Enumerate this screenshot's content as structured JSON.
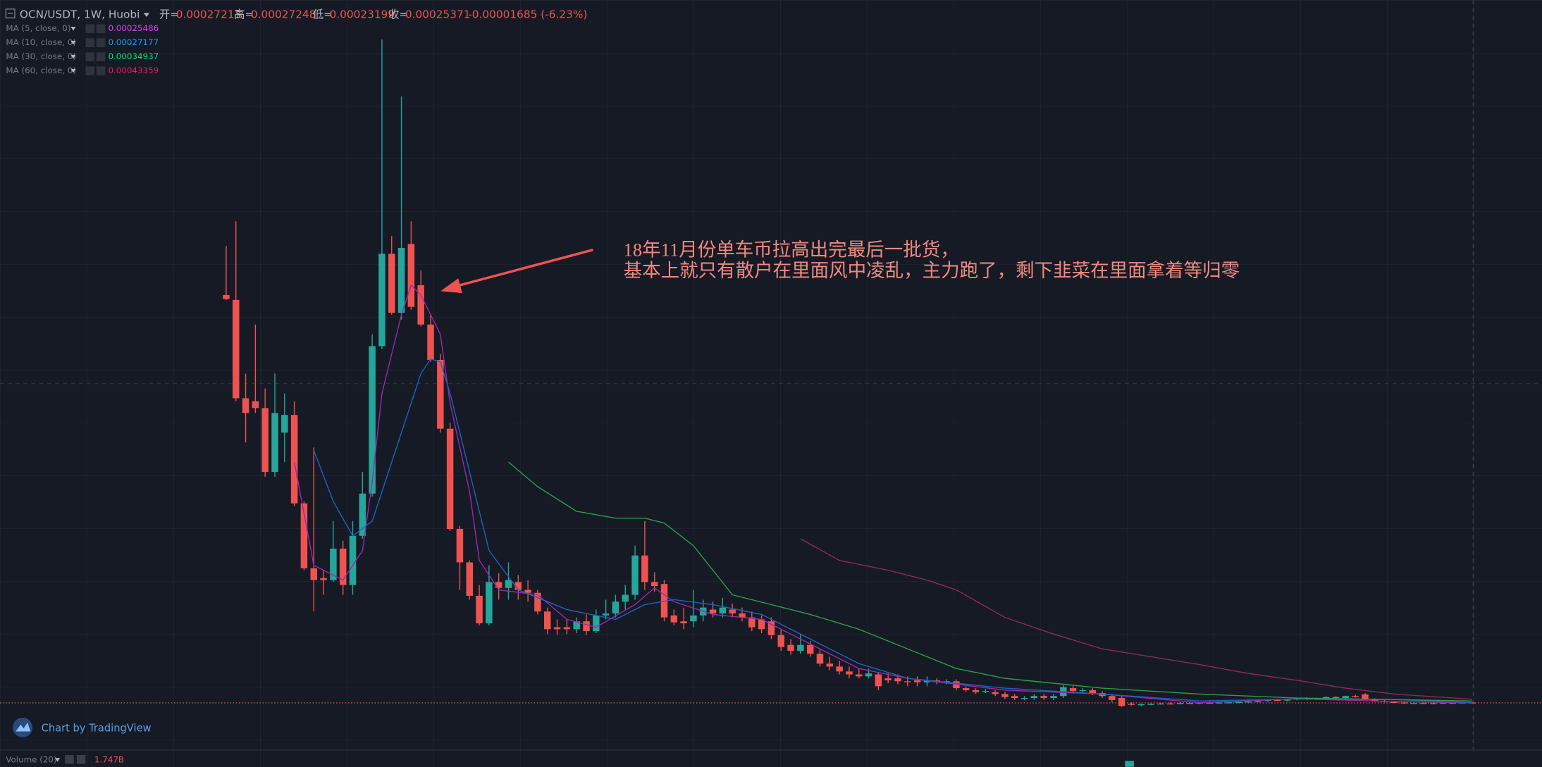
{
  "header": {
    "symbol": "OCN/USDT, 1W, Huobi",
    "ohlc_labels": [
      "开=",
      "高=",
      "低=",
      "收="
    ],
    "change": "-0.00001685 (-6.23%)"
  },
  "chart_data": {
    "type": "candlestick",
    "up_color": "#26a69a",
    "down_color": "#ef5350",
    "ylim": [
      0,
      0.034
    ],
    "candles": [
      [
        0.021,
        0.0235,
        0.02075,
        0.0208
      ],
      [
        0.02075,
        0.02475,
        0.0156,
        0.01575
      ],
      [
        0.01575,
        0.017,
        0.0135,
        0.015
      ],
      [
        0.0156,
        0.0195,
        0.015,
        0.01525
      ],
      [
        0.01525,
        0.01625,
        0.01175,
        0.012
      ],
      [
        0.012,
        0.017,
        0.01175,
        0.015
      ],
      [
        0.014,
        0.016,
        0.0125,
        0.0149
      ],
      [
        0.0149,
        0.0156,
        0.01025,
        0.0104
      ],
      [
        0.0104,
        0.0105,
        0.007,
        0.0071
      ],
      [
        0.0071,
        0.01325,
        0.0049,
        0.0065
      ],
      [
        0.0066,
        0.007,
        0.00575,
        0.0065
      ],
      [
        0.0065,
        0.0095,
        0.0064,
        0.0081
      ],
      [
        0.0081,
        0.0085,
        0.00575,
        0.00625
      ],
      [
        0.00625,
        0.0095,
        0.00575,
        0.00875
      ],
      [
        0.00875,
        0.012,
        0.0086,
        0.0109
      ],
      [
        0.0109,
        0.019,
        0.01075,
        0.0184
      ],
      [
        0.0184,
        0.034,
        0.01825,
        0.0231
      ],
      [
        0.0231,
        0.024,
        0.02,
        0.0201
      ],
      [
        0.0201,
        0.0311,
        0.01975,
        0.0234
      ],
      [
        0.0236,
        0.02475,
        0.02025,
        0.0204
      ],
      [
        0.0215,
        0.02225,
        0.0194,
        0.0195
      ],
      [
        0.0195,
        0.02,
        0.0176,
        0.0177
      ],
      [
        0.0177,
        0.018,
        0.014,
        0.0142
      ],
      [
        0.0142,
        0.0145,
        0.009,
        0.0091
      ],
      [
        0.0091,
        0.00925,
        0.006,
        0.0074
      ],
      [
        0.0074,
        0.0075,
        0.0055,
        0.0057
      ],
      [
        0.0057,
        0.00625,
        0.0042,
        0.0043
      ],
      [
        0.0043,
        0.00725,
        0.0042,
        0.0064
      ],
      [
        0.0064,
        0.00685,
        0.0055,
        0.0061
      ],
      [
        0.0061,
        0.0074,
        0.0055,
        0.0065
      ],
      [
        0.0064,
        0.00675,
        0.0055,
        0.006
      ],
      [
        0.006,
        0.0065,
        0.0054,
        0.00585
      ],
      [
        0.00585,
        0.006,
        0.00475,
        0.0049
      ],
      [
        0.0049,
        0.0051,
        0.00375,
        0.004
      ],
      [
        0.0041,
        0.0045,
        0.0037,
        0.004
      ],
      [
        0.0041,
        0.0045,
        0.00375,
        0.004
      ],
      [
        0.004,
        0.0046,
        0.0038,
        0.0044
      ],
      [
        0.0044,
        0.00475,
        0.0037,
        0.0039
      ],
      [
        0.0039,
        0.005,
        0.0038,
        0.0047
      ],
      [
        0.0047,
        0.0055,
        0.0045,
        0.0048
      ],
      [
        0.0048,
        0.00575,
        0.0046,
        0.0054
      ],
      [
        0.0054,
        0.00625,
        0.005,
        0.00575
      ],
      [
        0.00575,
        0.00825,
        0.0055,
        0.00775
      ],
      [
        0.00775,
        0.0095,
        0.006,
        0.0064
      ],
      [
        0.0064,
        0.0069,
        0.0059,
        0.0062
      ],
      [
        0.0063,
        0.0065,
        0.0044,
        0.0046
      ],
      [
        0.0047,
        0.005,
        0.0042,
        0.00435
      ],
      [
        0.0044,
        0.0051,
        0.004,
        0.0043
      ],
      [
        0.0044,
        0.006,
        0.0041,
        0.0047
      ],
      [
        0.0047,
        0.0055,
        0.0044,
        0.0051
      ],
      [
        0.005,
        0.0054,
        0.0046,
        0.0048
      ],
      [
        0.0048,
        0.0056,
        0.0046,
        0.0051
      ],
      [
        0.005,
        0.0053,
        0.0046,
        0.0048
      ],
      [
        0.0048,
        0.0051,
        0.0044,
        0.0046
      ],
      [
        0.0046,
        0.0049,
        0.0039,
        0.0041
      ],
      [
        0.0045,
        0.0047,
        0.0038,
        0.004
      ],
      [
        0.0044,
        0.0046,
        0.0035,
        0.0037
      ],
      [
        0.0037,
        0.004,
        0.0029,
        0.0031
      ],
      [
        0.0032,
        0.0035,
        0.0027,
        0.0029
      ],
      [
        0.0029,
        0.00375,
        0.00275,
        0.0032
      ],
      [
        0.0032,
        0.0034,
        0.0026,
        0.00275
      ],
      [
        0.00275,
        0.003,
        0.0021,
        0.00225
      ],
      [
        0.00225,
        0.0026,
        0.0019,
        0.0021
      ],
      [
        0.0021,
        0.0024,
        0.0017,
        0.00185
      ],
      [
        0.00185,
        0.0021,
        0.0015,
        0.0017
      ],
      [
        0.0017,
        0.002,
        0.0015,
        0.0016
      ],
      [
        0.0016,
        0.002,
        0.0015,
        0.00175
      ],
      [
        0.0017,
        0.0018,
        0.0009,
        0.0011
      ],
      [
        0.0015,
        0.00175,
        0.00125,
        0.0014
      ],
      [
        0.0015,
        0.0017,
        0.0012,
        0.00135
      ],
      [
        0.00135,
        0.0016,
        0.0011,
        0.0013
      ],
      [
        0.0014,
        0.0016,
        0.0011,
        0.0013
      ],
      [
        0.0013,
        0.0016,
        0.0011,
        0.0014
      ],
      [
        0.0014,
        0.0015,
        0.0012,
        0.0013
      ],
      [
        0.0013,
        0.00145,
        0.0012,
        0.00135
      ],
      [
        0.00135,
        0.00145,
        0.0009,
        0.001
      ],
      [
        0.001,
        0.0011,
        0.0008,
        0.0009
      ],
      [
        0.0009,
        0.001,
        0.0007,
        0.0008
      ],
      [
        0.00085,
        0.00095,
        0.00075,
        0.00085
      ],
      [
        0.0008,
        0.0009,
        0.0006,
        0.0007
      ],
      [
        0.0007,
        0.0008,
        0.00045,
        0.00055
      ],
      [
        0.0006,
        0.0007,
        0.0004,
        0.0005
      ],
      [
        0.0005,
        0.0006,
        0.0004,
        0.0005
      ],
      [
        0.0005,
        0.0007,
        0.0004,
        0.0006
      ],
      [
        0.0006,
        0.0007,
        0.0004,
        0.0005
      ],
      [
        0.0005,
        0.0007,
        0.0004,
        0.0006
      ],
      [
        0.0006,
        0.00115,
        0.0005,
        0.00105
      ],
      [
        0.001,
        0.0011,
        0.00075,
        0.00085
      ],
      [
        0.00085,
        0.001,
        0.00075,
        0.0009
      ],
      [
        0.0009,
        0.001,
        0.00065,
        0.00075
      ],
      [
        0.00075,
        0.00085,
        0.0005,
        0.0006
      ],
      [
        0.0006,
        0.0007,
        0.0003,
        0.0004
      ],
      [
        0.0005,
        0.0006,
        5e-05,
        0.0001
      ],
      [
        0.0002,
        0.00028,
        0.00012,
        0.00015
      ],
      [
        0.00015,
        0.00022,
        0.0001,
        0.00018
      ],
      [
        0.00018,
        0.00024,
        0.00014,
        0.0002
      ],
      [
        0.0002,
        0.00026,
        0.00016,
        0.00022
      ],
      [
        0.00022,
        0.00028,
        0.00018,
        0.00021
      ],
      [
        0.00021,
        0.00029,
        0.00017,
        0.00025
      ],
      [
        0.00025,
        0.0003,
        0.0002,
        0.00023
      ],
      [
        0.00023,
        0.00029,
        0.00019,
        0.00026
      ],
      [
        0.00026,
        0.00032,
        0.00022,
        0.00024
      ],
      [
        0.00024,
        0.0003,
        0.0002,
        0.00027
      ],
      [
        0.00027,
        0.00033,
        0.00023,
        0.00028
      ],
      [
        0.00028,
        0.00034,
        0.00024,
        0.0003
      ],
      [
        0.0003,
        0.00036,
        0.00026,
        0.00032
      ],
      [
        0.00032,
        0.00038,
        0.00028,
        0.00035
      ],
      [
        0.00035,
        0.00042,
        0.0003,
        0.0004
      ],
      [
        0.0004,
        0.00046,
        0.00034,
        0.00037
      ],
      [
        0.00037,
        0.00044,
        0.00033,
        0.00042
      ],
      [
        0.00042,
        0.0005,
        0.00038,
        0.00048
      ],
      [
        0.00048,
        0.00054,
        0.0004,
        0.00044
      ],
      [
        0.00044,
        0.00052,
        0.0004,
        0.0005
      ],
      [
        0.0005,
        0.00058,
        0.00046,
        0.00055
      ],
      [
        0.00055,
        0.0006,
        0.00045,
        0.0005
      ],
      [
        0.0005,
        0.00062,
        0.00048,
        0.0006
      ],
      [
        0.0006,
        0.00066,
        0.00052,
        0.00056
      ],
      [
        0.00068,
        0.00075,
        0.0004,
        0.00042
      ],
      [
        0.00042,
        0.00048,
        0.00032,
        0.00035
      ],
      [
        0.00035,
        0.0004,
        0.00028,
        0.0003
      ],
      [
        0.0003,
        0.00036,
        0.00024,
        0.00027
      ],
      [
        0.00027,
        0.00032,
        0.0002,
        0.00023
      ],
      [
        0.00023,
        0.0003,
        0.0002,
        0.00025
      ],
      [
        0.00025,
        0.0003,
        0.0002,
        0.00022
      ],
      [
        0.00022,
        0.00028,
        0.00018,
        0.00024
      ],
      [
        0.00024,
        0.0003,
        0.0002,
        0.00026
      ],
      [
        0.00026,
        0.0003,
        0.0002,
        0.00023
      ],
      [
        0.00023,
        0.0003,
        0.00021,
        0.00027
      ],
      [
        0.00027213,
        0.00027248,
        0.00023199,
        0.00025371
      ]
    ],
    "series": [
      {
        "name": "MA (5, close, 0)",
        "color": "#e040fb",
        "line_color": "#9c27b0",
        "x": [
          7,
          9,
          12,
          14,
          15,
          16,
          18,
          19,
          20,
          22,
          23,
          25,
          26,
          28,
          32,
          35,
          38,
          42,
          44,
          46,
          50,
          55,
          60,
          65,
          70,
          80,
          90,
          100,
          110,
          120,
          128
        ],
        "values": [
          0.0125,
          0.00725,
          0.0065,
          0.008,
          0.0115,
          0.016,
          0.02,
          0.0215,
          0.021,
          0.019,
          0.0155,
          0.011,
          0.0075,
          0.006,
          0.00575,
          0.0045,
          0.0041,
          0.00525,
          0.0061,
          0.0054,
          0.00475,
          0.0045,
          0.00325,
          0.002,
          0.0015,
          0.0009,
          0.0007,
          0.00026,
          0.00046,
          0.00032,
          0.00025486
        ]
      },
      {
        "name": "MA (10, close, 0)",
        "color": "#2196f3",
        "line_color": "#1e63c0",
        "x": [
          9,
          11,
          13,
          15,
          16,
          18,
          20,
          21,
          22,
          23,
          25,
          27,
          30,
          35,
          40,
          43,
          46,
          50,
          55,
          60,
          65,
          70,
          80,
          90,
          100,
          110,
          120,
          128
        ],
        "values": [
          0.0131,
          0.0105,
          0.00875,
          0.0095,
          0.011,
          0.014,
          0.017,
          0.01775,
          0.0176,
          0.016,
          0.012,
          0.008,
          0.006,
          0.005,
          0.0045,
          0.00525,
          0.0055,
          0.00525,
          0.00475,
          0.0035,
          0.00225,
          0.0015,
          0.001,
          0.0007,
          0.00035,
          0.00045,
          0.00042,
          0.00027177
        ]
      },
      {
        "name": "MA (30, close, 0)",
        "color": "#00e676",
        "line_color": "#2e9d4a",
        "x": [
          29,
          32,
          36,
          40,
          43,
          45,
          48,
          52,
          56,
          60,
          65,
          70,
          75,
          80,
          90,
          100,
          110,
          120,
          128
        ],
        "values": [
          0.0125,
          0.01125,
          0.01,
          0.00965,
          0.00965,
          0.0094,
          0.00825,
          0.00575,
          0.00525,
          0.00475,
          0.004,
          0.003,
          0.002,
          0.0015,
          0.001,
          0.0007,
          0.0005,
          0.00042,
          0.00034937
        ]
      },
      {
        "name": "MA (60, close, 0)",
        "color": "#e91e63",
        "line_color": "#8e2a5a",
        "x": [
          59,
          63,
          68,
          72,
          75,
          80,
          85,
          90,
          95,
          100,
          105,
          110,
          115,
          120,
          128
        ],
        "values": [
          0.0086,
          0.0075,
          0.007,
          0.0065,
          0.006,
          0.0046,
          0.00375,
          0.003,
          0.0026,
          0.0022,
          0.00175,
          0.0014,
          0.001,
          0.0007,
          0.00043359
        ]
      }
    ],
    "annotation": [
      "18年11月份单车币拉高出完最后一批货，",
      "基本上就只有散户在里面风中凌乱，主力跑了，剩下韭菜在里面拿着等归零"
    ]
  },
  "volume": {
    "name": "Volume (20)",
    "value": "1.747B"
  },
  "branding": "Chart by TradingView"
}
